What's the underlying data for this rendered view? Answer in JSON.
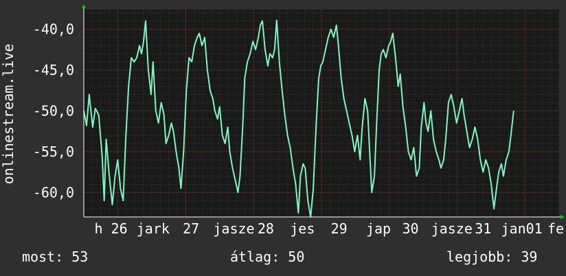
{
  "chart_data": {
    "type": "line",
    "ylabel": "onlinestream.live",
    "y_ticks": [
      "-40,0",
      "-45,0",
      "-50,0",
      "-55,0",
      "-60,0"
    ],
    "y_tick_values": [
      -40,
      -45,
      -50,
      -55,
      -60
    ],
    "ylim": [
      -63,
      -37.6
    ],
    "x_tick_labels": [
      "h 26",
      "jark",
      "27",
      "jasze",
      "28",
      "jes",
      "29",
      "jap",
      "30",
      "jasze",
      "31",
      "jan01",
      "fe"
    ],
    "x_tick_values": [
      0.4,
      1.02,
      1.58,
      2.21,
      2.68,
      3.22,
      3.76,
      4.34,
      4.81,
      5.42,
      5.88,
      6.45,
      6.95
    ],
    "xlim": [
      0,
      7
    ],
    "grid": true,
    "colors": {
      "background": "#2f2f2f",
      "plot_background": "#1a1a1a",
      "grid": "#3a3a3a",
      "line": "#7ff5c0",
      "axis": "#ffffff",
      "axis_arrow": "#00cc00"
    },
    "series": [
      {
        "values": [
          [
            0.0,
            -50.0
          ],
          [
            0.04,
            -51.8
          ],
          [
            0.08,
            -48.0
          ],
          [
            0.13,
            -52.0
          ],
          [
            0.17,
            -49.7
          ],
          [
            0.22,
            -50.5
          ],
          [
            0.27,
            -55.5
          ],
          [
            0.3,
            -61.0
          ],
          [
            0.33,
            -53.5
          ],
          [
            0.37,
            -57.5
          ],
          [
            0.42,
            -61.5
          ],
          [
            0.46,
            -58.0
          ],
          [
            0.5,
            -56.0
          ],
          [
            0.54,
            -59.5
          ],
          [
            0.58,
            -61.0
          ],
          [
            0.62,
            -53.0
          ],
          [
            0.66,
            -47.0
          ],
          [
            0.7,
            -43.5
          ],
          [
            0.74,
            -44.0
          ],
          [
            0.78,
            -43.5
          ],
          [
            0.82,
            -42.0
          ],
          [
            0.85,
            -43.0
          ],
          [
            0.88,
            -41.5
          ],
          [
            0.91,
            -39.0
          ],
          [
            0.95,
            -45.0
          ],
          [
            0.99,
            -48.0
          ],
          [
            1.02,
            -44.0
          ],
          [
            1.06,
            -50.0
          ],
          [
            1.1,
            -51.5
          ],
          [
            1.14,
            -49.0
          ],
          [
            1.18,
            -50.5
          ],
          [
            1.21,
            -54.0
          ],
          [
            1.25,
            -53.0
          ],
          [
            1.29,
            -51.5
          ],
          [
            1.32,
            -52.5
          ],
          [
            1.36,
            -55.0
          ],
          [
            1.4,
            -57.0
          ],
          [
            1.43,
            -59.5
          ],
          [
            1.47,
            -55.0
          ],
          [
            1.51,
            -47.5
          ],
          [
            1.55,
            -43.5
          ],
          [
            1.59,
            -44.0
          ],
          [
            1.63,
            -42.0
          ],
          [
            1.67,
            -41.0
          ],
          [
            1.7,
            -40.5
          ],
          [
            1.74,
            -42.0
          ],
          [
            1.78,
            -41.0
          ],
          [
            1.82,
            -45.0
          ],
          [
            1.86,
            -47.5
          ],
          [
            1.9,
            -48.5
          ],
          [
            1.93,
            -50.0
          ],
          [
            1.97,
            -51.0
          ],
          [
            2.0,
            -49.5
          ],
          [
            2.04,
            -53.0
          ],
          [
            2.08,
            -54.0
          ],
          [
            2.12,
            -52.0
          ],
          [
            2.15,
            -55.0
          ],
          [
            2.19,
            -57.0
          ],
          [
            2.23,
            -58.5
          ],
          [
            2.27,
            -60.0
          ],
          [
            2.3,
            -58.0
          ],
          [
            2.34,
            -52.0
          ],
          [
            2.37,
            -46.0
          ],
          [
            2.41,
            -44.0
          ],
          [
            2.45,
            -43.0
          ],
          [
            2.49,
            -41.5
          ],
          [
            2.53,
            -42.5
          ],
          [
            2.57,
            -41.0
          ],
          [
            2.6,
            -39.5
          ],
          [
            2.63,
            -39.0
          ],
          [
            2.67,
            -42.5
          ],
          [
            2.71,
            -44.5
          ],
          [
            2.74,
            -43.0
          ],
          [
            2.78,
            -43.5
          ],
          [
            2.81,
            -42.5
          ],
          [
            2.84,
            -38.9
          ],
          [
            2.88,
            -44.0
          ],
          [
            2.92,
            -47.5
          ],
          [
            2.96,
            -50.5
          ],
          [
            3.0,
            -53.0
          ],
          [
            3.04,
            -54.5
          ],
          [
            3.08,
            -57.0
          ],
          [
            3.12,
            -59.0
          ],
          [
            3.16,
            -62.5
          ],
          [
            3.19,
            -58.0
          ],
          [
            3.23,
            -56.5
          ],
          [
            3.26,
            -57.0
          ],
          [
            3.3,
            -61.0
          ],
          [
            3.34,
            -63.0
          ],
          [
            3.38,
            -59.5
          ],
          [
            3.42,
            -52.0
          ],
          [
            3.46,
            -46.0
          ],
          [
            3.49,
            -44.5
          ],
          [
            3.52,
            -44.0
          ],
          [
            3.56,
            -42.5
          ],
          [
            3.6,
            -41.0
          ],
          [
            3.64,
            -40.0
          ],
          [
            3.68,
            -41.0
          ],
          [
            3.72,
            -39.5
          ],
          [
            3.75,
            -42.0
          ],
          [
            3.79,
            -46.0
          ],
          [
            3.83,
            -48.5
          ],
          [
            3.87,
            -50.0
          ],
          [
            3.91,
            -51.5
          ],
          [
            3.95,
            -53.0
          ],
          [
            3.99,
            -55.0
          ],
          [
            4.03,
            -53.0
          ],
          [
            4.07,
            -56.0
          ],
          [
            4.1,
            -52.0
          ],
          [
            4.14,
            -48.5
          ],
          [
            4.18,
            -50.0
          ],
          [
            4.21,
            -55.0
          ],
          [
            4.24,
            -60.0
          ],
          [
            4.28,
            -58.0
          ],
          [
            4.31,
            -52.0
          ],
          [
            4.35,
            -45.0
          ],
          [
            4.38,
            -43.0
          ],
          [
            4.41,
            -42.5
          ],
          [
            4.45,
            -43.5
          ],
          [
            4.49,
            -42.0
          ],
          [
            4.52,
            -41.5
          ],
          [
            4.55,
            -40.5
          ],
          [
            4.59,
            -43.5
          ],
          [
            4.63,
            -47.0
          ],
          [
            4.66,
            -45.5
          ],
          [
            4.7,
            -49.5
          ],
          [
            4.74,
            -52.0
          ],
          [
            4.78,
            -55.0
          ],
          [
            4.82,
            -56.0
          ],
          [
            4.86,
            -54.5
          ],
          [
            4.9,
            -58.0
          ],
          [
            4.94,
            -57.0
          ],
          [
            4.97,
            -52.0
          ],
          [
            5.01,
            -49.0
          ],
          [
            5.04,
            -51.5
          ],
          [
            5.07,
            -52.5
          ],
          [
            5.11,
            -50.0
          ],
          [
            5.15,
            -53.5
          ],
          [
            5.19,
            -55.0
          ],
          [
            5.23,
            -56.0
          ],
          [
            5.26,
            -57.0
          ],
          [
            5.3,
            -56.0
          ],
          [
            5.33,
            -53.5
          ],
          [
            5.37,
            -49.0
          ],
          [
            5.41,
            -48.0
          ],
          [
            5.45,
            -49.5
          ],
          [
            5.49,
            -51.5
          ],
          [
            5.53,
            -50.0
          ],
          [
            5.57,
            -48.5
          ],
          [
            5.6,
            -50.5
          ],
          [
            5.64,
            -52.5
          ],
          [
            5.68,
            -54.5
          ],
          [
            5.72,
            -53.5
          ],
          [
            5.76,
            -52.0
          ],
          [
            5.8,
            -53.5
          ],
          [
            5.84,
            -56.0
          ],
          [
            5.88,
            -57.5
          ],
          [
            5.92,
            -56.0
          ],
          [
            5.96,
            -57.0
          ],
          [
            6.0,
            -59.0
          ],
          [
            6.04,
            -62.0
          ],
          [
            6.07,
            -60.0
          ],
          [
            6.11,
            -57.5
          ],
          [
            6.15,
            -56.5
          ],
          [
            6.18,
            -58.0
          ],
          [
            6.22,
            -56.0
          ],
          [
            6.26,
            -55.0
          ],
          [
            6.29,
            -53.0
          ],
          [
            6.33,
            -50.0
          ]
        ]
      }
    ]
  },
  "stats": {
    "most": "most: 53",
    "atlag": "átlag: 50",
    "legjobb": "legjobb: 39"
  }
}
